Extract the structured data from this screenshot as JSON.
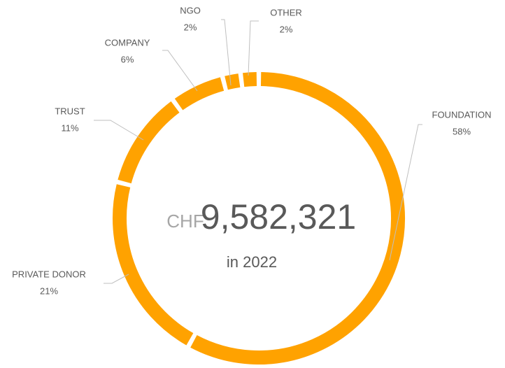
{
  "chart_data": {
    "type": "donut",
    "categories": [
      "FOUNDATION",
      "PRIVATE DONOR",
      "TRUST",
      "COMPANY",
      "NGO",
      "OTHER"
    ],
    "values": [
      58,
      21,
      11,
      6,
      2,
      2
    ],
    "value_labels": [
      "58%",
      "21%",
      "11%",
      "6%",
      "2%",
      "2%"
    ],
    "color": "#ffa200",
    "center_label": {
      "currency": "CHF",
      "amount": "9,582,321",
      "subtitle": "in 2022"
    }
  }
}
